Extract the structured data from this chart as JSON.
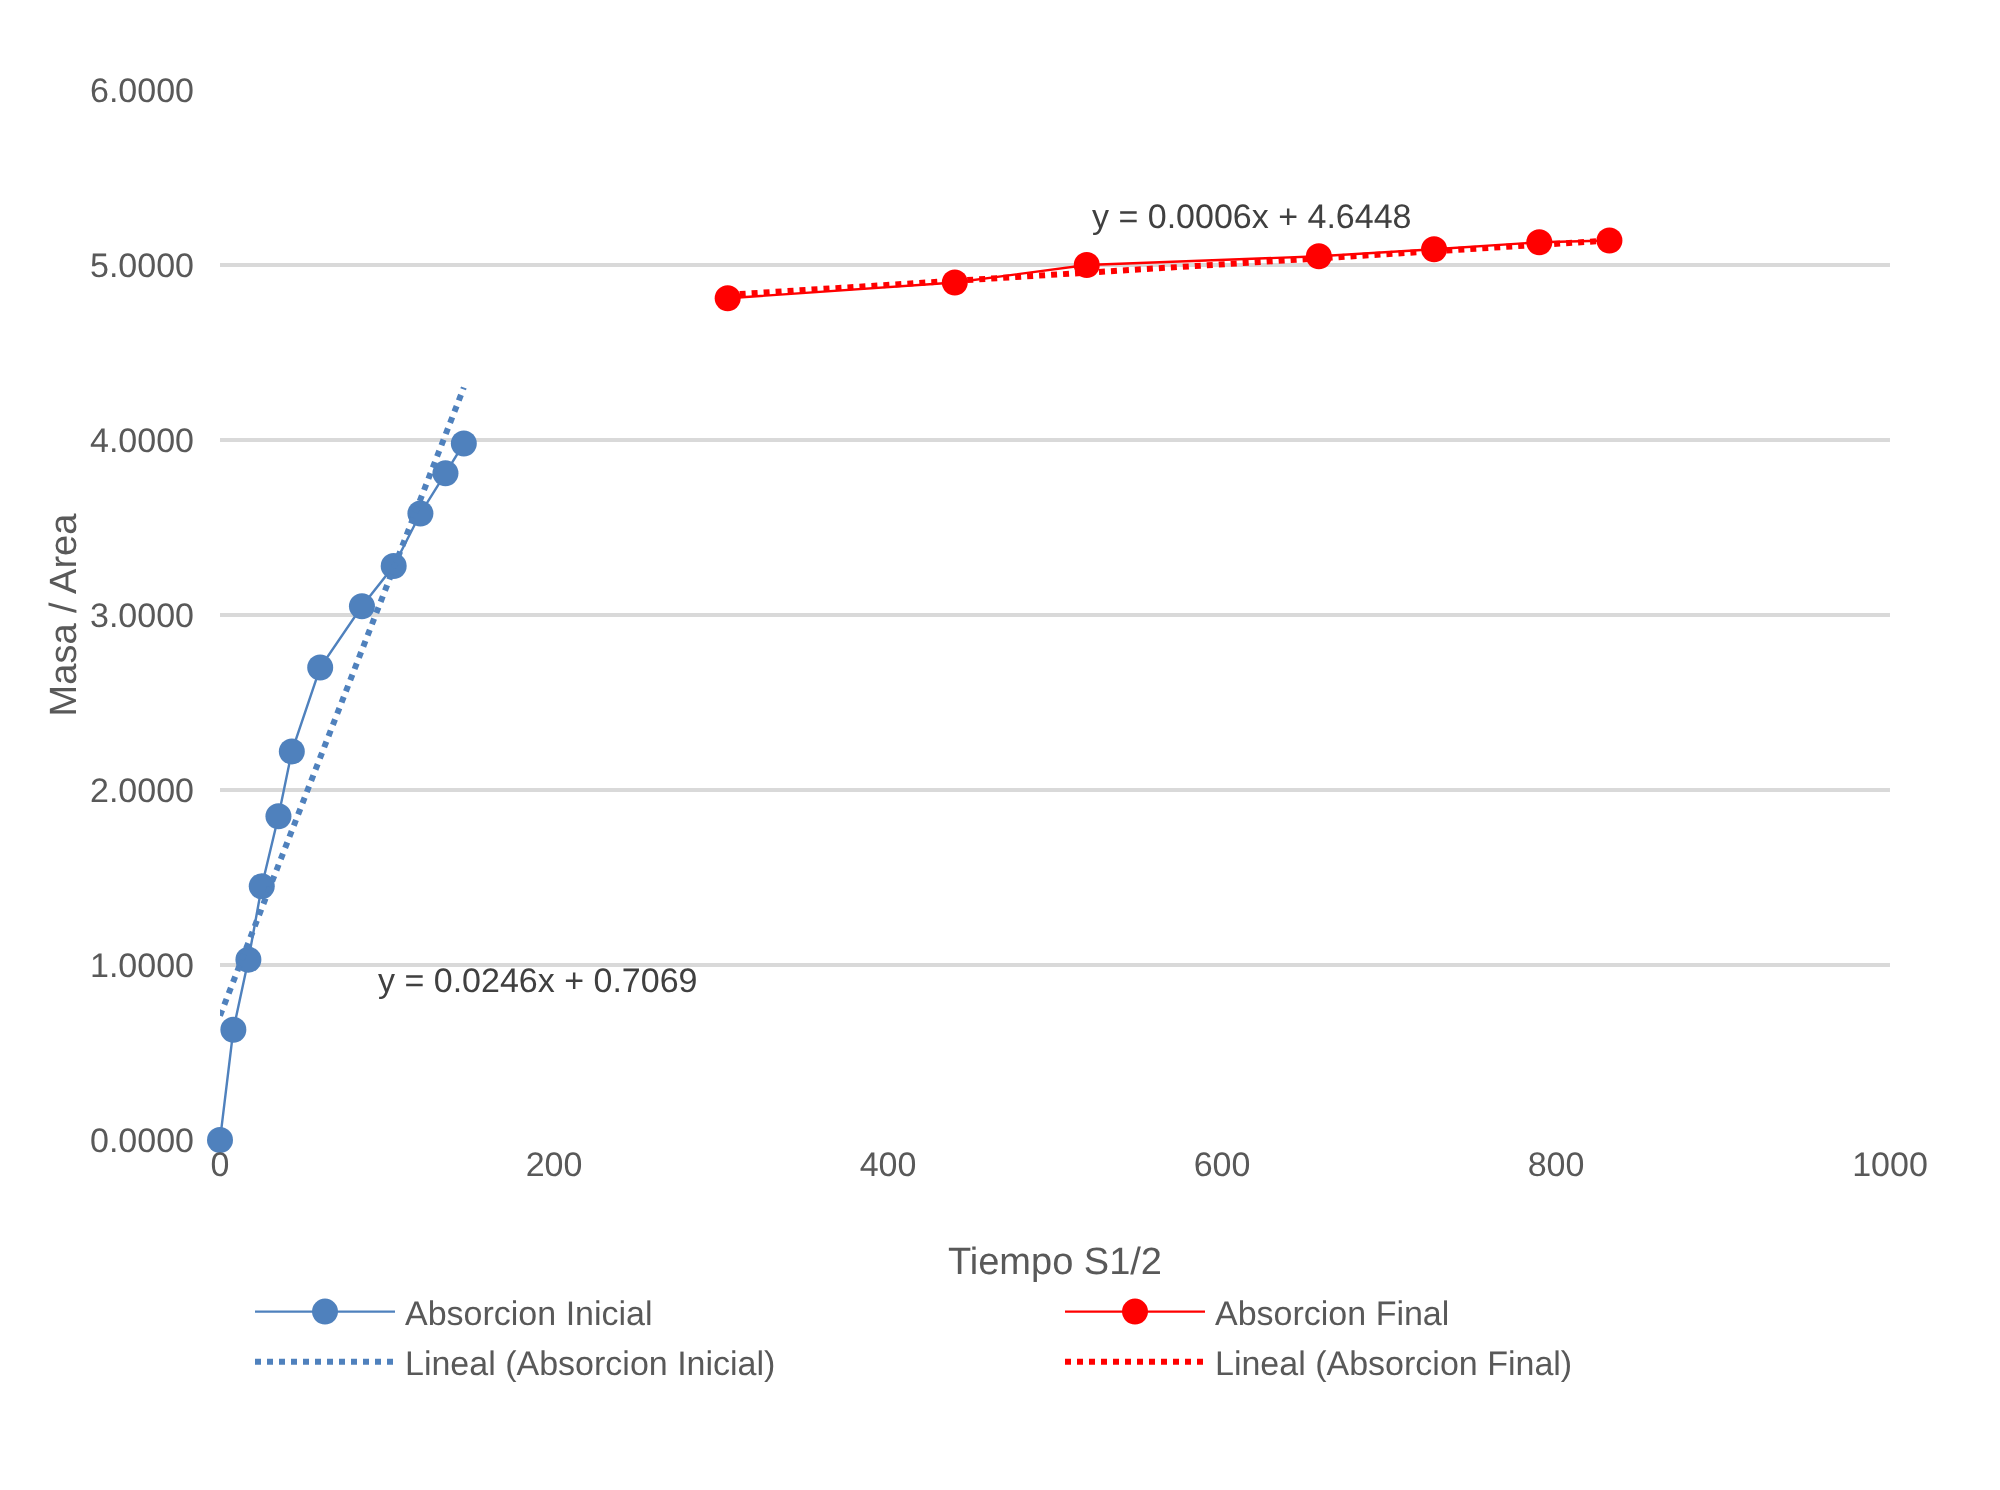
{
  "chart_data": {
    "type": "scatter",
    "xlabel": "Tiempo S1/2",
    "ylabel": "Masa / Area",
    "xlim": [
      0,
      1000
    ],
    "xticks": [
      0,
      200,
      400,
      600,
      800,
      1000
    ],
    "ylim": [
      0,
      6
    ],
    "yticks": [
      {
        "value": 0,
        "label": "0.0000"
      },
      {
        "value": 1,
        "label": "1.0000"
      },
      {
        "value": 2,
        "label": "2.0000"
      },
      {
        "value": 3,
        "label": "3.0000"
      },
      {
        "value": 4,
        "label": "4.0000"
      },
      {
        "value": 5,
        "label": "5.0000"
      },
      {
        "value": 6,
        "label": "6.0000"
      }
    ],
    "grid": "y",
    "legend": "bottom",
    "series": [
      {
        "name": "Absorcion Inicial",
        "type": "line",
        "color": "#4f81bd",
        "marker": "circle",
        "line_style": "solid",
        "x": [
          0,
          8,
          17,
          25,
          35,
          43,
          60,
          85,
          104,
          120,
          135,
          146
        ],
        "values": [
          0,
          0.63,
          1.03,
          1.45,
          1.85,
          2.22,
          2.7,
          3.05,
          3.28,
          3.58,
          3.81,
          3.98
        ]
      },
      {
        "name": "Absorcion Final",
        "type": "line",
        "color": "#ff0000",
        "marker": "circle",
        "line_style": "solid",
        "x": [
          304,
          440,
          519,
          658,
          727,
          790,
          832
        ],
        "values": [
          4.81,
          4.9,
          5.0,
          5.05,
          5.09,
          5.13,
          5.14
        ]
      },
      {
        "name": "Lineal (Absorcion Inicial)",
        "type": "line",
        "color": "#4f81bd",
        "marker": "none",
        "line_style": "dotted",
        "x": [
          0,
          146
        ],
        "values": [
          0.71,
          4.3
        ]
      },
      {
        "name": "Lineal (Absorcion Final)",
        "type": "line",
        "color": "#ff0000",
        "marker": "none",
        "line_style": "dotted",
        "x": [
          304,
          832
        ],
        "values": [
          4.83,
          5.14
        ]
      }
    ],
    "annotations": [
      "y = 0.0246x + 0.7069",
      "y = 0.0006x + 4.6448"
    ]
  }
}
